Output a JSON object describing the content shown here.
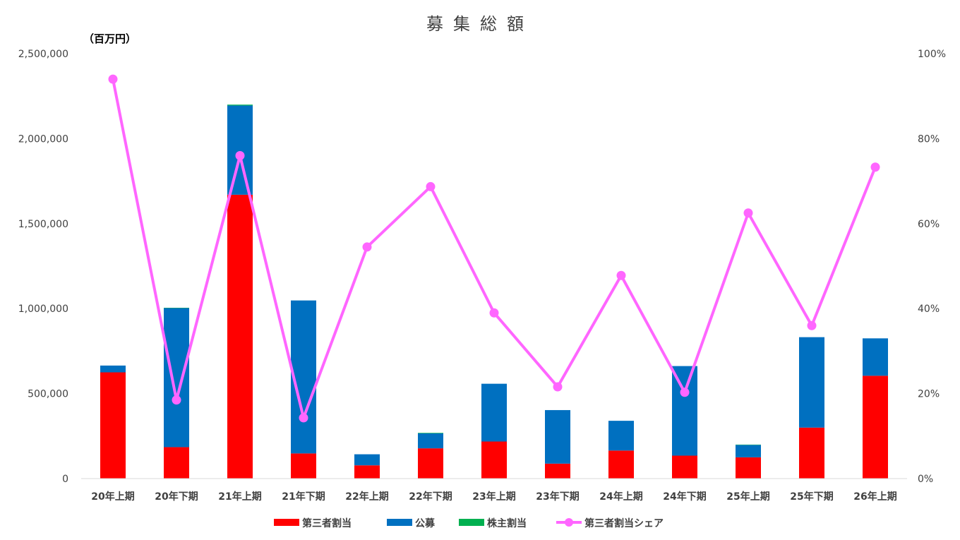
{
  "chart_data": {
    "type": "bar",
    "title": "募集総額",
    "unit_label": "（百万円）",
    "categories": [
      "20年上期",
      "20年下期",
      "21年上期",
      "21年下期",
      "22年上期",
      "22年下期",
      "23年上期",
      "23年下期",
      "24年上期",
      "24年下期",
      "25年上期",
      "25年下期",
      "26年上期"
    ],
    "series": [
      {
        "name": "第三者割当",
        "kind": "bar",
        "color": "#ff0000",
        "values": [
          625000,
          185000,
          1670000,
          148000,
          78000,
          178000,
          218000,
          88000,
          165000,
          135000,
          125000,
          300000,
          605000
        ]
      },
      {
        "name": "公募",
        "kind": "bar",
        "color": "#0070c0",
        "values": [
          40000,
          818000,
          525000,
          900000,
          65000,
          88000,
          340000,
          315000,
          175000,
          527000,
          73000,
          532000,
          220000
        ]
      },
      {
        "name": "株主割当",
        "kind": "bar",
        "color": "#00b050",
        "values": [
          0,
          2000,
          5000,
          0,
          0,
          3000,
          0,
          0,
          0,
          0,
          2000,
          0,
          0
        ]
      },
      {
        "name": "第三者割当シェア",
        "kind": "line",
        "color": "#ff66ff",
        "axis": "right",
        "values": [
          0.94,
          0.185,
          0.76,
          0.143,
          0.545,
          0.687,
          0.39,
          0.216,
          0.478,
          0.203,
          0.625,
          0.36,
          0.733
        ]
      }
    ],
    "y_left": {
      "min": 0,
      "max": 2500000,
      "ticks": [
        "0",
        "500,000",
        "1,000,000",
        "1,500,000",
        "2,000,000",
        "2,500,000"
      ]
    },
    "y_right": {
      "min": 0,
      "max": 1,
      "ticks": [
        "0%",
        "20%",
        "40%",
        "60%",
        "80%",
        "100%"
      ]
    },
    "legend_position": "bottom",
    "grid": false
  }
}
